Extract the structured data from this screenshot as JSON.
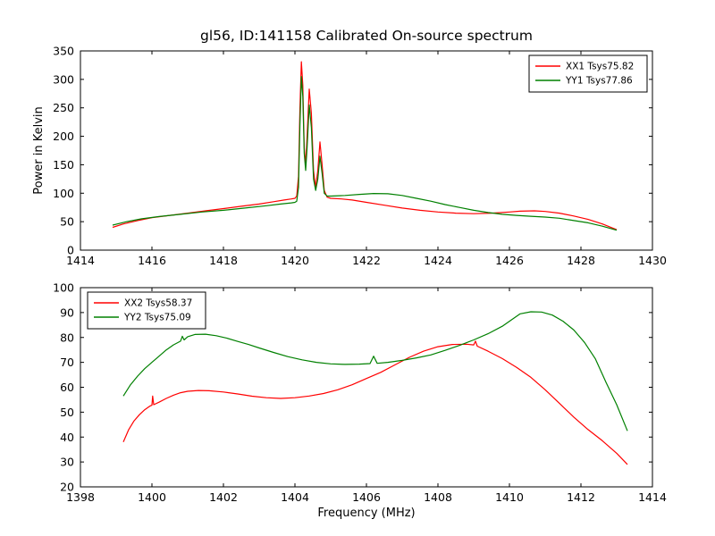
{
  "figure": {
    "title": "gl56, ID:141158 Calibrated On-source spectrum",
    "background_color": "#ffffff",
    "axes_color": "#000000"
  },
  "chart_data": [
    {
      "type": "line",
      "title": "gl56, ID:141158 Calibrated On-source spectrum",
      "xlabel": "",
      "ylabel": "Power in Kelvin",
      "xlim": [
        1414,
        1430
      ],
      "ylim": [
        0,
        350
      ],
      "xticks": [
        1414,
        1416,
        1418,
        1420,
        1422,
        1424,
        1426,
        1428,
        1430
      ],
      "yticks": [
        0,
        50,
        100,
        150,
        200,
        250,
        300,
        350
      ],
      "grid": false,
      "legend": {
        "position": "upper right"
      },
      "series": [
        {
          "name": "XX1 Tsys75.82",
          "color": "#ff0000",
          "points": [
            [
              1414.9,
              40
            ],
            [
              1415.2,
              46
            ],
            [
              1415.6,
              52
            ],
            [
              1416,
              57
            ],
            [
              1416.5,
              61
            ],
            [
              1417,
              65
            ],
            [
              1417.5,
              69
            ],
            [
              1418,
              73
            ],
            [
              1418.5,
              77
            ],
            [
              1419,
              81
            ],
            [
              1419.4,
              85
            ],
            [
              1419.7,
              88
            ],
            [
              1419.9,
              90
            ],
            [
              1420,
              91
            ],
            [
              1420.05,
              95
            ],
            [
              1420.1,
              130
            ],
            [
              1420.14,
              250
            ],
            [
              1420.18,
              331
            ],
            [
              1420.22,
              290
            ],
            [
              1420.26,
              180
            ],
            [
              1420.3,
              150
            ],
            [
              1420.34,
              200
            ],
            [
              1420.4,
              283
            ],
            [
              1420.46,
              240
            ],
            [
              1420.52,
              140
            ],
            [
              1420.58,
              110
            ],
            [
              1420.64,
              140
            ],
            [
              1420.7,
              190
            ],
            [
              1420.76,
              150
            ],
            [
              1420.82,
              105
            ],
            [
              1420.9,
              93
            ],
            [
              1421,
              91
            ],
            [
              1421.3,
              90
            ],
            [
              1421.6,
              88
            ],
            [
              1422,
              84
            ],
            [
              1422.5,
              79
            ],
            [
              1423,
              74
            ],
            [
              1423.5,
              70
            ],
            [
              1424,
              67
            ],
            [
              1424.5,
              65
            ],
            [
              1425,
              64
            ],
            [
              1425.5,
              65
            ],
            [
              1426,
              67
            ],
            [
              1426.3,
              68.5
            ],
            [
              1426.7,
              69
            ],
            [
              1427,
              68
            ],
            [
              1427.4,
              65
            ],
            [
              1427.8,
              60
            ],
            [
              1428.2,
              54
            ],
            [
              1428.6,
              46
            ],
            [
              1429,
              36
            ]
          ]
        },
        {
          "name": "YY1 Tsys77.86",
          "color": "#008000",
          "points": [
            [
              1414.9,
              44
            ],
            [
              1415.3,
              50
            ],
            [
              1415.7,
              55
            ],
            [
              1416.2,
              59
            ],
            [
              1416.8,
              63
            ],
            [
              1417.4,
              67
            ],
            [
              1418,
              70
            ],
            [
              1418.6,
              74
            ],
            [
              1419.2,
              78
            ],
            [
              1419.6,
              81
            ],
            [
              1419.9,
              83
            ],
            [
              1420,
              84
            ],
            [
              1420.05,
              86
            ],
            [
              1420.1,
              110
            ],
            [
              1420.14,
              220
            ],
            [
              1420.18,
              305
            ],
            [
              1420.22,
              270
            ],
            [
              1420.26,
              170
            ],
            [
              1420.3,
              140
            ],
            [
              1420.34,
              180
            ],
            [
              1420.4,
              255
            ],
            [
              1420.46,
              215
            ],
            [
              1420.52,
              125
            ],
            [
              1420.58,
              105
            ],
            [
              1420.64,
              125
            ],
            [
              1420.7,
              165
            ],
            [
              1420.76,
              135
            ],
            [
              1420.82,
              100
            ],
            [
              1420.9,
              95
            ],
            [
              1421,
              95
            ],
            [
              1421.4,
              96
            ],
            [
              1421.8,
              98
            ],
            [
              1422.2,
              99.5
            ],
            [
              1422.6,
              99
            ],
            [
              1423,
              96
            ],
            [
              1423.4,
              91
            ],
            [
              1423.8,
              86
            ],
            [
              1424.2,
              80
            ],
            [
              1424.6,
              75
            ],
            [
              1425,
              70
            ],
            [
              1425.4,
              66
            ],
            [
              1425.8,
              63
            ],
            [
              1426.2,
              61
            ],
            [
              1426.6,
              59.5
            ],
            [
              1427,
              58
            ],
            [
              1427.4,
              56
            ],
            [
              1427.8,
              52
            ],
            [
              1428.2,
              48
            ],
            [
              1428.6,
              42
            ],
            [
              1429,
              35
            ]
          ]
        }
      ]
    },
    {
      "type": "line",
      "title": "",
      "xlabel": "Frequency (MHz)",
      "ylabel": "",
      "xlim": [
        1398,
        1414
      ],
      "ylim": [
        20,
        100
      ],
      "xticks": [
        1398,
        1400,
        1402,
        1404,
        1406,
        1408,
        1410,
        1412,
        1414
      ],
      "yticks": [
        20,
        30,
        40,
        50,
        60,
        70,
        80,
        90,
        100
      ],
      "grid": false,
      "legend": {
        "position": "upper left"
      },
      "series": [
        {
          "name": "XX2 Tsys58.37",
          "color": "#ff0000",
          "points": [
            [
              1399.2,
              38
            ],
            [
              1399.35,
              43
            ],
            [
              1399.5,
              46.5
            ],
            [
              1399.65,
              49
            ],
            [
              1399.8,
              51
            ],
            [
              1399.95,
              52.5
            ],
            [
              1400,
              52.8
            ],
            [
              1400.02,
              56.5
            ],
            [
              1400.05,
              53
            ],
            [
              1400.2,
              54
            ],
            [
              1400.4,
              55.5
            ],
            [
              1400.6,
              56.8
            ],
            [
              1400.8,
              57.8
            ],
            [
              1401,
              58.4
            ],
            [
              1401.3,
              58.7
            ],
            [
              1401.6,
              58.6
            ],
            [
              1402,
              58.1
            ],
            [
              1402.4,
              57.3
            ],
            [
              1402.8,
              56.4
            ],
            [
              1403.2,
              55.8
            ],
            [
              1403.6,
              55.5
            ],
            [
              1404,
              55.8
            ],
            [
              1404.4,
              56.5
            ],
            [
              1404.8,
              57.5
            ],
            [
              1405.2,
              59
            ],
            [
              1405.6,
              61
            ],
            [
              1406,
              63.5
            ],
            [
              1406.4,
              66
            ],
            [
              1406.8,
              69
            ],
            [
              1407.2,
              72
            ],
            [
              1407.6,
              74.5
            ],
            [
              1408,
              76.3
            ],
            [
              1408.4,
              77.2
            ],
            [
              1408.8,
              77.3
            ],
            [
              1409,
              77
            ],
            [
              1409.05,
              78.5
            ],
            [
              1409.1,
              76.5
            ],
            [
              1409.4,
              74.5
            ],
            [
              1409.8,
              71.5
            ],
            [
              1410.2,
              68
            ],
            [
              1410.6,
              64
            ],
            [
              1411,
              59
            ],
            [
              1411.4,
              53.5
            ],
            [
              1411.8,
              48
            ],
            [
              1412.2,
              43
            ],
            [
              1412.6,
              38.5
            ],
            [
              1413,
              33.5
            ],
            [
              1413.3,
              29
            ]
          ]
        },
        {
          "name": "YY2 Tsys75.09",
          "color": "#008000",
          "points": [
            [
              1399.2,
              56.5
            ],
            [
              1399.4,
              61
            ],
            [
              1399.6,
              64.5
            ],
            [
              1399.8,
              67.5
            ],
            [
              1400,
              70
            ],
            [
              1400.2,
              72.5
            ],
            [
              1400.4,
              75
            ],
            [
              1400.6,
              77
            ],
            [
              1400.8,
              78.5
            ],
            [
              1400.85,
              80.5
            ],
            [
              1400.9,
              79
            ],
            [
              1401,
              80.3
            ],
            [
              1401.2,
              81.2
            ],
            [
              1401.5,
              81.3
            ],
            [
              1401.8,
              80.7
            ],
            [
              1402.1,
              79.7
            ],
            [
              1402.4,
              78.4
            ],
            [
              1402.7,
              77.2
            ],
            [
              1403,
              75.8
            ],
            [
              1403.4,
              74
            ],
            [
              1403.8,
              72.3
            ],
            [
              1404.2,
              71
            ],
            [
              1404.6,
              70
            ],
            [
              1405,
              69.4
            ],
            [
              1405.4,
              69.2
            ],
            [
              1405.8,
              69.3
            ],
            [
              1406.1,
              69.5
            ],
            [
              1406.2,
              72.5
            ],
            [
              1406.3,
              69.6
            ],
            [
              1406.6,
              70
            ],
            [
              1407,
              70.8
            ],
            [
              1407.4,
              71.8
            ],
            [
              1407.8,
              73
            ],
            [
              1408.2,
              74.8
            ],
            [
              1408.6,
              76.8
            ],
            [
              1409,
              79
            ],
            [
              1409.4,
              81.5
            ],
            [
              1409.8,
              84.5
            ],
            [
              1410,
              86.5
            ],
            [
              1410.3,
              89.5
            ],
            [
              1410.6,
              90.3
            ],
            [
              1410.9,
              90.2
            ],
            [
              1411.2,
              89
            ],
            [
              1411.5,
              86.5
            ],
            [
              1411.8,
              83
            ],
            [
              1412.1,
              78
            ],
            [
              1412.4,
              71.5
            ],
            [
              1412.7,
              62
            ],
            [
              1413,
              53
            ],
            [
              1413.3,
              42.5
            ]
          ]
        }
      ]
    }
  ]
}
